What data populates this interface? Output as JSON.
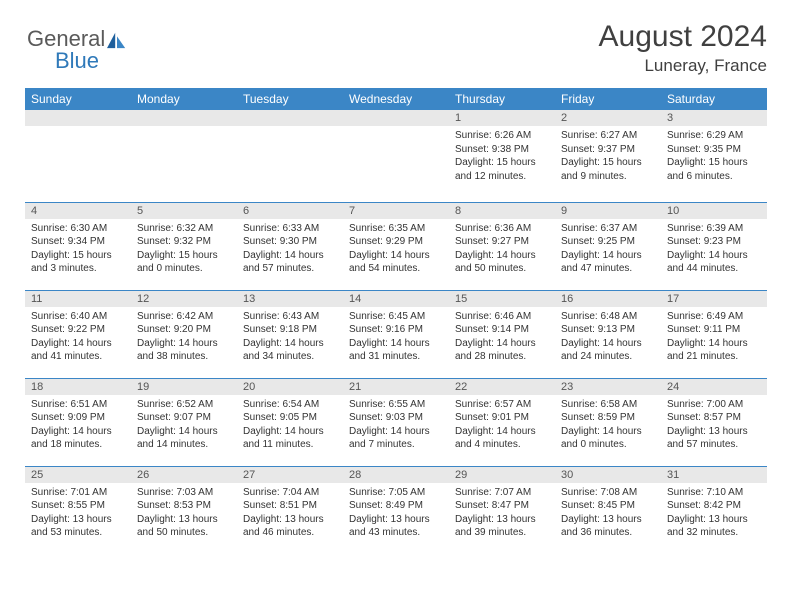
{
  "logo": {
    "general": "General",
    "blue": "Blue"
  },
  "title": "August 2024",
  "location": "Luneray, France",
  "colors": {
    "header_bg": "#3b86c6",
    "header_text": "#ffffff",
    "daynum_bg": "#e8e8e8",
    "daynum_text": "#555555",
    "body_text": "#333333",
    "rule": "#3b86c6",
    "logo_gray": "#5a5a5a",
    "logo_blue": "#2f79b9",
    "title_color": "#404040"
  },
  "weekdays": [
    "Sunday",
    "Monday",
    "Tuesday",
    "Wednesday",
    "Thursday",
    "Friday",
    "Saturday"
  ],
  "weeks": [
    [
      {
        "n": "",
        "sr": "",
        "ss": "",
        "dl": ""
      },
      {
        "n": "",
        "sr": "",
        "ss": "",
        "dl": ""
      },
      {
        "n": "",
        "sr": "",
        "ss": "",
        "dl": ""
      },
      {
        "n": "",
        "sr": "",
        "ss": "",
        "dl": ""
      },
      {
        "n": "1",
        "sr": "Sunrise: 6:26 AM",
        "ss": "Sunset: 9:38 PM",
        "dl": "Daylight: 15 hours and 12 minutes."
      },
      {
        "n": "2",
        "sr": "Sunrise: 6:27 AM",
        "ss": "Sunset: 9:37 PM",
        "dl": "Daylight: 15 hours and 9 minutes."
      },
      {
        "n": "3",
        "sr": "Sunrise: 6:29 AM",
        "ss": "Sunset: 9:35 PM",
        "dl": "Daylight: 15 hours and 6 minutes."
      }
    ],
    [
      {
        "n": "4",
        "sr": "Sunrise: 6:30 AM",
        "ss": "Sunset: 9:34 PM",
        "dl": "Daylight: 15 hours and 3 minutes."
      },
      {
        "n": "5",
        "sr": "Sunrise: 6:32 AM",
        "ss": "Sunset: 9:32 PM",
        "dl": "Daylight: 15 hours and 0 minutes."
      },
      {
        "n": "6",
        "sr": "Sunrise: 6:33 AM",
        "ss": "Sunset: 9:30 PM",
        "dl": "Daylight: 14 hours and 57 minutes."
      },
      {
        "n": "7",
        "sr": "Sunrise: 6:35 AM",
        "ss": "Sunset: 9:29 PM",
        "dl": "Daylight: 14 hours and 54 minutes."
      },
      {
        "n": "8",
        "sr": "Sunrise: 6:36 AM",
        "ss": "Sunset: 9:27 PM",
        "dl": "Daylight: 14 hours and 50 minutes."
      },
      {
        "n": "9",
        "sr": "Sunrise: 6:37 AM",
        "ss": "Sunset: 9:25 PM",
        "dl": "Daylight: 14 hours and 47 minutes."
      },
      {
        "n": "10",
        "sr": "Sunrise: 6:39 AM",
        "ss": "Sunset: 9:23 PM",
        "dl": "Daylight: 14 hours and 44 minutes."
      }
    ],
    [
      {
        "n": "11",
        "sr": "Sunrise: 6:40 AM",
        "ss": "Sunset: 9:22 PM",
        "dl": "Daylight: 14 hours and 41 minutes."
      },
      {
        "n": "12",
        "sr": "Sunrise: 6:42 AM",
        "ss": "Sunset: 9:20 PM",
        "dl": "Daylight: 14 hours and 38 minutes."
      },
      {
        "n": "13",
        "sr": "Sunrise: 6:43 AM",
        "ss": "Sunset: 9:18 PM",
        "dl": "Daylight: 14 hours and 34 minutes."
      },
      {
        "n": "14",
        "sr": "Sunrise: 6:45 AM",
        "ss": "Sunset: 9:16 PM",
        "dl": "Daylight: 14 hours and 31 minutes."
      },
      {
        "n": "15",
        "sr": "Sunrise: 6:46 AM",
        "ss": "Sunset: 9:14 PM",
        "dl": "Daylight: 14 hours and 28 minutes."
      },
      {
        "n": "16",
        "sr": "Sunrise: 6:48 AM",
        "ss": "Sunset: 9:13 PM",
        "dl": "Daylight: 14 hours and 24 minutes."
      },
      {
        "n": "17",
        "sr": "Sunrise: 6:49 AM",
        "ss": "Sunset: 9:11 PM",
        "dl": "Daylight: 14 hours and 21 minutes."
      }
    ],
    [
      {
        "n": "18",
        "sr": "Sunrise: 6:51 AM",
        "ss": "Sunset: 9:09 PM",
        "dl": "Daylight: 14 hours and 18 minutes."
      },
      {
        "n": "19",
        "sr": "Sunrise: 6:52 AM",
        "ss": "Sunset: 9:07 PM",
        "dl": "Daylight: 14 hours and 14 minutes."
      },
      {
        "n": "20",
        "sr": "Sunrise: 6:54 AM",
        "ss": "Sunset: 9:05 PM",
        "dl": "Daylight: 14 hours and 11 minutes."
      },
      {
        "n": "21",
        "sr": "Sunrise: 6:55 AM",
        "ss": "Sunset: 9:03 PM",
        "dl": "Daylight: 14 hours and 7 minutes."
      },
      {
        "n": "22",
        "sr": "Sunrise: 6:57 AM",
        "ss": "Sunset: 9:01 PM",
        "dl": "Daylight: 14 hours and 4 minutes."
      },
      {
        "n": "23",
        "sr": "Sunrise: 6:58 AM",
        "ss": "Sunset: 8:59 PM",
        "dl": "Daylight: 14 hours and 0 minutes."
      },
      {
        "n": "24",
        "sr": "Sunrise: 7:00 AM",
        "ss": "Sunset: 8:57 PM",
        "dl": "Daylight: 13 hours and 57 minutes."
      }
    ],
    [
      {
        "n": "25",
        "sr": "Sunrise: 7:01 AM",
        "ss": "Sunset: 8:55 PM",
        "dl": "Daylight: 13 hours and 53 minutes."
      },
      {
        "n": "26",
        "sr": "Sunrise: 7:03 AM",
        "ss": "Sunset: 8:53 PM",
        "dl": "Daylight: 13 hours and 50 minutes."
      },
      {
        "n": "27",
        "sr": "Sunrise: 7:04 AM",
        "ss": "Sunset: 8:51 PM",
        "dl": "Daylight: 13 hours and 46 minutes."
      },
      {
        "n": "28",
        "sr": "Sunrise: 7:05 AM",
        "ss": "Sunset: 8:49 PM",
        "dl": "Daylight: 13 hours and 43 minutes."
      },
      {
        "n": "29",
        "sr": "Sunrise: 7:07 AM",
        "ss": "Sunset: 8:47 PM",
        "dl": "Daylight: 13 hours and 39 minutes."
      },
      {
        "n": "30",
        "sr": "Sunrise: 7:08 AM",
        "ss": "Sunset: 8:45 PM",
        "dl": "Daylight: 13 hours and 36 minutes."
      },
      {
        "n": "31",
        "sr": "Sunrise: 7:10 AM",
        "ss": "Sunset: 8:42 PM",
        "dl": "Daylight: 13 hours and 32 minutes."
      }
    ]
  ]
}
